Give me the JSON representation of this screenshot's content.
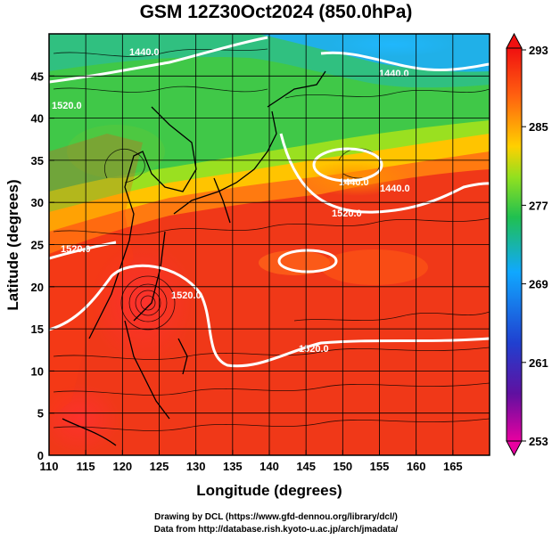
{
  "title": "GSM 12Z30Oct2024 (850.0hPa)",
  "chart_data": {
    "type": "heatmap",
    "title": "GSM 12Z30Oct2024 (850.0hPa)",
    "xlabel": "Longitude (degrees)",
    "ylabel": "Latitude  (degrees)",
    "xlim": [
      110,
      170
    ],
    "ylim": [
      0,
      50
    ],
    "xticks": [
      110,
      115,
      120,
      125,
      130,
      135,
      140,
      145,
      150,
      155,
      160,
      165
    ],
    "yticks": [
      0,
      5,
      10,
      15,
      20,
      25,
      30,
      35,
      40,
      45
    ],
    "grid": true,
    "colorbar": {
      "min": 253,
      "max": 293,
      "tick_labels": [
        293,
        285,
        277,
        269,
        261,
        253
      ],
      "colors": [
        "#e8007a",
        "#4020c0",
        "#1090ff",
        "#30c060",
        "#60d020",
        "#ffd000",
        "#ff6010",
        "#f01010"
      ]
    },
    "contours": {
      "variable": "geopotential height",
      "color": "#ffffff",
      "labels": [
        "1440.0",
        "1440.0",
        "1440.0",
        "1520.0",
        "1520.0",
        "1520.0",
        "1520.0",
        "1520.0",
        "1440.0"
      ]
    },
    "features": [
      "streamlines",
      "coastlines"
    ]
  },
  "footer": {
    "line1": "Drawing by DCL (https://www.gfd-dennou.org/library/dcl/)",
    "line2": "Data from http://database.rish.kyoto-u.ac.jp/arch/jmadata/"
  }
}
